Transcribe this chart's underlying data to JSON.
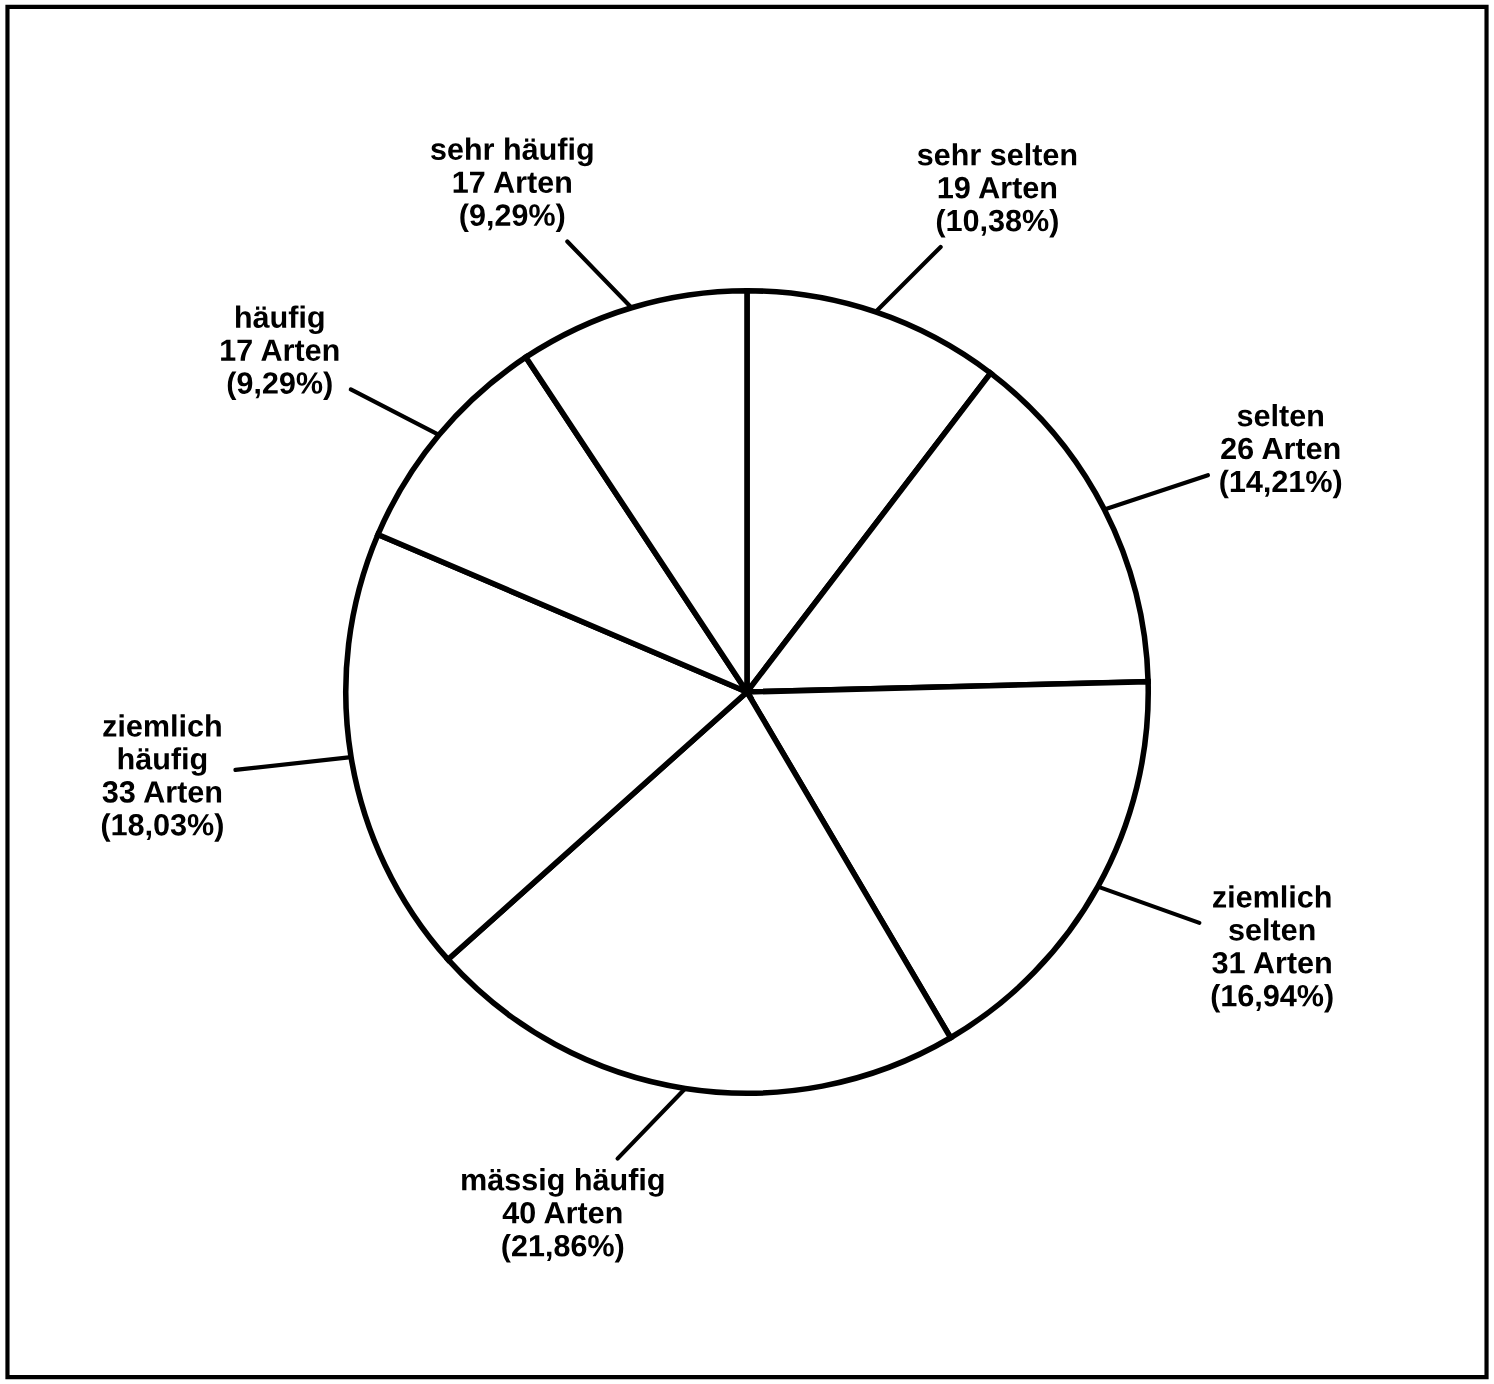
{
  "chart_data": {
    "type": "pie",
    "categories": [
      "sehr selten",
      "selten",
      "ziemlich\nselten",
      "mässig häufig",
      "ziemlich\nhäufig",
      "häufig",
      "sehr häufig"
    ],
    "values": [
      19,
      26,
      31,
      40,
      33,
      17,
      17
    ],
    "value_labels": [
      "19 Arten\n(10,38%)",
      "26 Arten\n(14,21%)",
      "31 Arten\n(16,94%)",
      "40 Arten\n(21,86%)",
      "33 Arten\n(18,03%)",
      "17 Arten\n(9,29%)",
      "17 Arten\n(9,29%)"
    ],
    "colors": [
      "#ffffff",
      "#ffffff",
      "#ffffff",
      "#ffffff",
      "#ffffff",
      "#ffffff",
      "#ffffff"
    ],
    "legend": false
  }
}
